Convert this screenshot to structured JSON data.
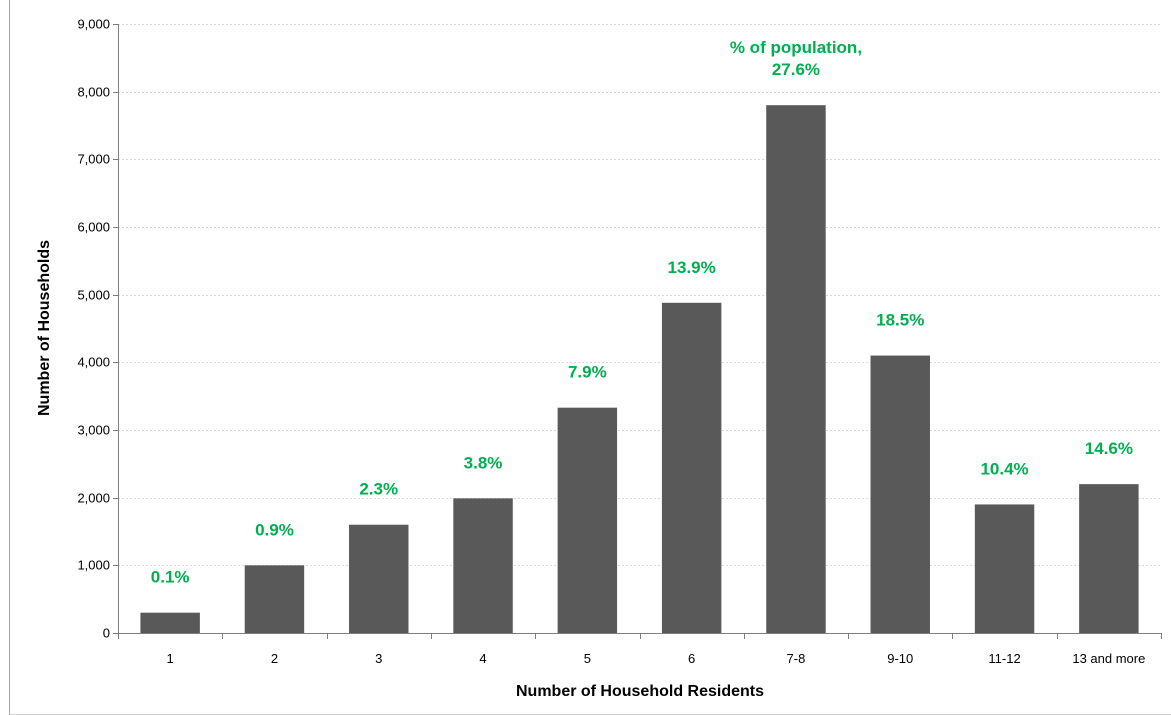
{
  "chart_data": {
    "type": "bar",
    "categories": [
      "1",
      "2",
      "3",
      "4",
      "5",
      "6",
      "7-8",
      "9-10",
      "11-12",
      "13 and more"
    ],
    "values": [
      300,
      1000,
      1600,
      1990,
      3330,
      4880,
      7800,
      4100,
      1900,
      2200
    ],
    "data_labels": [
      "0.1%",
      "0.9%",
      "2.3%",
      "3.8%",
      "7.9%",
      "13.9%",
      "27.6%",
      "18.5%",
      "10.4%",
      "14.6%"
    ],
    "label_prefix": "% of population,",
    "xlabel": "Number of Household Residents",
    "ylabel": "Number of Households",
    "ylim": [
      0,
      9000
    ],
    "yticks": [
      0,
      1000,
      2000,
      3000,
      4000,
      5000,
      6000,
      7000,
      8000,
      9000
    ],
    "ytick_labels": [
      "0",
      "1,000",
      "2,000",
      "3,000",
      "4,000",
      "5,000",
      "6,000",
      "7,000",
      "8,000",
      "9,000"
    ],
    "grid": true,
    "colors": {
      "bar": "#595959",
      "data_label": "#00b050",
      "grid": "#d9d9d9"
    }
  }
}
